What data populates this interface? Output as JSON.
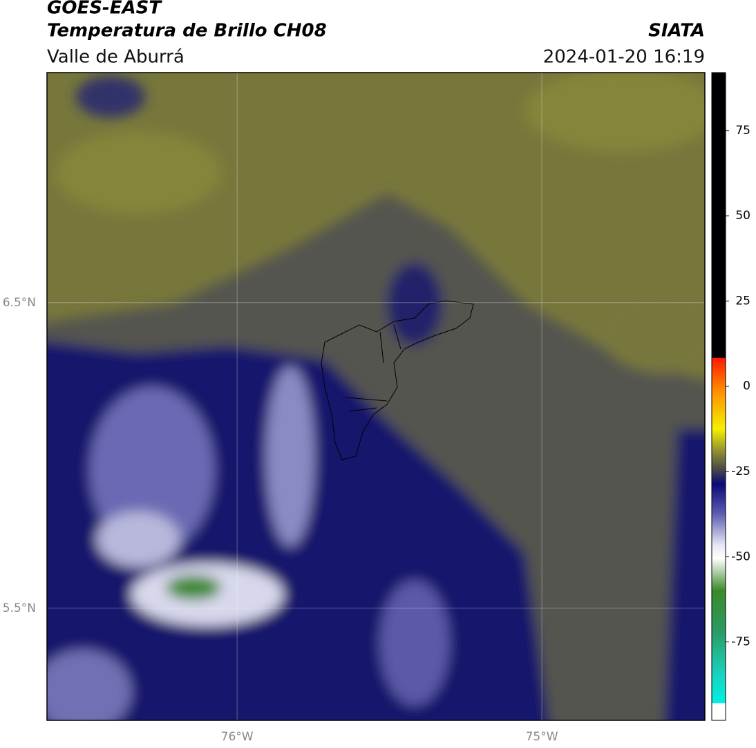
{
  "header": {
    "title": "GOES-EAST",
    "subtitle": "Temperatura de Brillo CH08",
    "agency": "SIATA",
    "region": "Valle de Aburrá",
    "datetime": "2024-01-20 16:19"
  },
  "map": {
    "lat_lim": [
      5.133,
      7.253
    ],
    "lon_lim": [
      -76.624,
      -74.465
    ],
    "lat_ticks": [
      {
        "value": 6.5,
        "label": "6.5°N"
      },
      {
        "value": 5.5,
        "label": "5.5°N"
      }
    ],
    "lon_ticks": [
      {
        "value": -76,
        "label": "76°W"
      },
      {
        "value": -75,
        "label": "75°W"
      }
    ]
  },
  "colorbar": {
    "lim": [
      -98,
      92
    ],
    "ticks": [
      75,
      50,
      25,
      0,
      -25,
      -50,
      -75
    ]
  }
}
